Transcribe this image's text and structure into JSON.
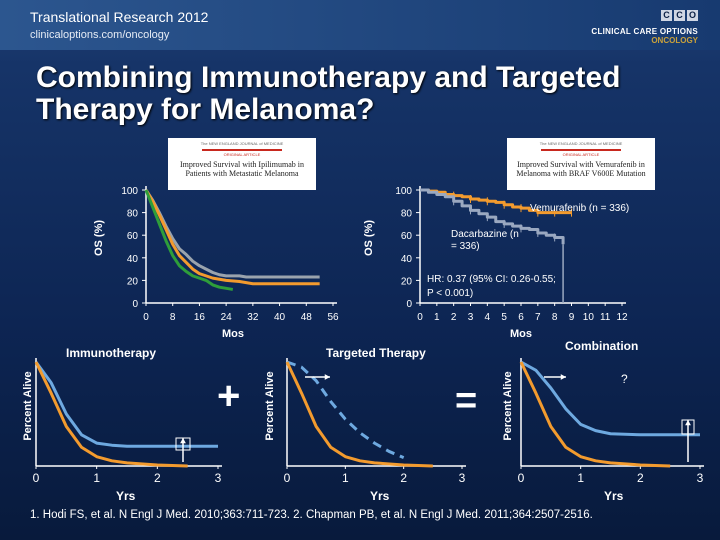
{
  "header": {
    "line1": "Translational Research 2012",
    "line2": "clinicaloptions.com/oncology"
  },
  "logo": {
    "letters": [
      "C",
      "C",
      "O"
    ],
    "line1": "CLINICAL CARE OPTIONS",
    "line2": "ONCOLOGY"
  },
  "title": "Combining Immunotherapy and Targeted Therapy for Melanoma?",
  "articles": [
    {
      "journal": "The NEW ENGLAND JOURNAL of MEDICINE",
      "type": "ORIGINAL ARTICLE",
      "title": "Improved Survival with Ipilimumab in Patients with Metastatic Melanoma"
    },
    {
      "journal": "The NEW ENGLAND JOURNAL of MEDICINE",
      "type": "ORIGINAL ARTICLE",
      "title": "Improved Survival with Vemurafenib in Melanoma with BRAF V600E Mutation"
    }
  ],
  "chart_data": [
    {
      "type": "line",
      "title": "Improved Survival with Ipilimumab in Patients with Metastatic Melanoma",
      "xlabel": "Mos",
      "ylabel": "OS (%)",
      "x_ticks": [
        0,
        8,
        16,
        24,
        32,
        40,
        48,
        56
      ],
      "y_ticks": [
        0,
        20,
        40,
        60,
        80,
        100
      ],
      "xlim": [
        0,
        56
      ],
      "ylim": [
        0,
        100
      ],
      "series": [
        {
          "name": "gray",
          "color": "#9aa3ad",
          "x": [
            0,
            2,
            4,
            6,
            8,
            10,
            12,
            14,
            16,
            18,
            20,
            22,
            24,
            26,
            28,
            30,
            34,
            38,
            42,
            46,
            50,
            52
          ],
          "y": [
            100,
            91,
            80,
            68,
            57,
            48,
            43,
            37,
            33,
            30,
            27,
            25,
            24,
            24,
            24,
            23,
            23,
            23,
            23,
            23,
            23,
            23
          ]
        },
        {
          "name": "orange",
          "color": "#f39b2e",
          "x": [
            0,
            2,
            4,
            6,
            8,
            10,
            12,
            14,
            16,
            18,
            20,
            24,
            28,
            32,
            36,
            40,
            44,
            48,
            52
          ],
          "y": [
            100,
            90,
            78,
            65,
            52,
            42,
            36,
            30,
            26,
            24,
            22,
            20,
            19,
            17,
            17,
            17,
            17,
            17,
            17
          ]
        },
        {
          "name": "green",
          "color": "#2e9e3a",
          "x": [
            0,
            2,
            4,
            6,
            8,
            10,
            12,
            14,
            16,
            18,
            20,
            22,
            24,
            26
          ],
          "y": [
            100,
            85,
            70,
            55,
            42,
            33,
            28,
            24,
            22,
            20,
            16,
            14,
            13,
            12
          ]
        }
      ]
    },
    {
      "type": "line",
      "title": "Improved Survival with Vemurafenib in Melanoma with BRAF V600E Mutation",
      "xlabel": "Mos",
      "ylabel": "OS (%)",
      "x_ticks": [
        0,
        1,
        2,
        3,
        4,
        5,
        6,
        7,
        8,
        9,
        10,
        11,
        12
      ],
      "y_ticks": [
        0,
        20,
        40,
        60,
        80,
        100
      ],
      "xlim": [
        0,
        12
      ],
      "ylim": [
        0,
        100
      ],
      "annotations": [
        "Vemurafenib (n = 336)",
        "Dacarbazine (n = 336)",
        "HR: 0.37 (95% CI: 0.26-0.55; P < 0.001)"
      ],
      "series": [
        {
          "name": "Vemurafenib (n = 336)",
          "color": "#f39b2e",
          "x": [
            0,
            0.5,
            1,
            1.5,
            2,
            2.5,
            3,
            3.5,
            4,
            4.5,
            5,
            5.5,
            6,
            6.5,
            7,
            7.5,
            8,
            8.5,
            9
          ],
          "y": [
            100,
            99,
            98,
            96,
            95,
            94,
            92,
            91,
            90,
            89,
            87,
            85,
            84,
            82,
            80,
            80,
            80,
            80,
            80
          ]
        },
        {
          "name": "Dacarbazine (n = 336)",
          "color": "#9aa8c0",
          "x": [
            0,
            0.5,
            1,
            1.5,
            2,
            2.5,
            3,
            3.5,
            4,
            4.5,
            5,
            5.5,
            6,
            6.5,
            7,
            7.5,
            8,
            8.5
          ],
          "y": [
            100,
            98,
            96,
            94,
            90,
            86,
            82,
            79,
            76,
            72,
            70,
            68,
            66,
            65,
            62,
            60,
            58,
            52
          ]
        }
      ]
    },
    {
      "type": "line",
      "title": "Immunotherapy",
      "xlabel": "Yrs",
      "ylabel": "Percent Alive",
      "x_ticks": [
        0,
        1,
        2,
        3
      ],
      "xlim": [
        0,
        3
      ],
      "ylim": [
        0,
        100
      ],
      "series": [
        {
          "name": "blue",
          "color": "#6ea9e0",
          "x": [
            0,
            0.25,
            0.5,
            0.75,
            1,
            1.25,
            1.5,
            2,
            2.5,
            3
          ],
          "y": [
            100,
            80,
            50,
            30,
            22,
            20,
            19,
            19,
            19,
            19
          ]
        },
        {
          "name": "orange",
          "color": "#f39b2e",
          "x": [
            0,
            0.25,
            0.5,
            0.75,
            1,
            1.25,
            1.5,
            2,
            2.5
          ],
          "y": [
            100,
            70,
            38,
            18,
            9,
            5,
            3,
            1,
            0
          ]
        }
      ]
    },
    {
      "type": "line",
      "title": "Targeted Therapy",
      "xlabel": "Yrs",
      "ylabel": "Percent Alive",
      "x_ticks": [
        0,
        1,
        2,
        3
      ],
      "xlim": [
        0,
        3
      ],
      "ylim": [
        0,
        100
      ],
      "series": [
        {
          "name": "blue dashed",
          "color": "#6ea9e0",
          "x": [
            0,
            0.25,
            0.5,
            0.75,
            1,
            1.25,
            1.5,
            1.75,
            2
          ],
          "y": [
            100,
            95,
            82,
            62,
            45,
            32,
            22,
            14,
            8
          ]
        },
        {
          "name": "orange",
          "color": "#f39b2e",
          "x": [
            0,
            0.25,
            0.5,
            0.75,
            1,
            1.25,
            1.5,
            2,
            2.5
          ],
          "y": [
            100,
            70,
            38,
            18,
            9,
            5,
            3,
            1,
            0
          ]
        }
      ]
    },
    {
      "type": "line",
      "title": "Combination",
      "xlabel": "Yrs",
      "ylabel": "Percent Alive",
      "x_ticks": [
        0,
        1,
        2,
        3
      ],
      "xlim": [
        0,
        3
      ],
      "ylim": [
        0,
        100
      ],
      "annotations": [
        "?"
      ],
      "series": [
        {
          "name": "blue",
          "color": "#6ea9e0",
          "x": [
            0,
            0.25,
            0.5,
            0.75,
            1,
            1.25,
            1.5,
            2,
            2.5,
            3
          ],
          "y": [
            100,
            92,
            75,
            55,
            40,
            34,
            31,
            30,
            30,
            30
          ]
        },
        {
          "name": "orange",
          "color": "#f39b2e",
          "x": [
            0,
            0.25,
            0.5,
            0.75,
            1,
            1.25,
            1.5,
            2,
            2.5
          ],
          "y": [
            100,
            70,
            38,
            18,
            9,
            5,
            3,
            1,
            0
          ]
        }
      ]
    }
  ],
  "symbols": {
    "plus": "+",
    "equals": "="
  },
  "reference": "1. Hodi FS, et al. N Engl J Med. 2010;363:711-723. 2. Chapman PB, et al. N Engl J Med. 2011;364:2507-2516."
}
